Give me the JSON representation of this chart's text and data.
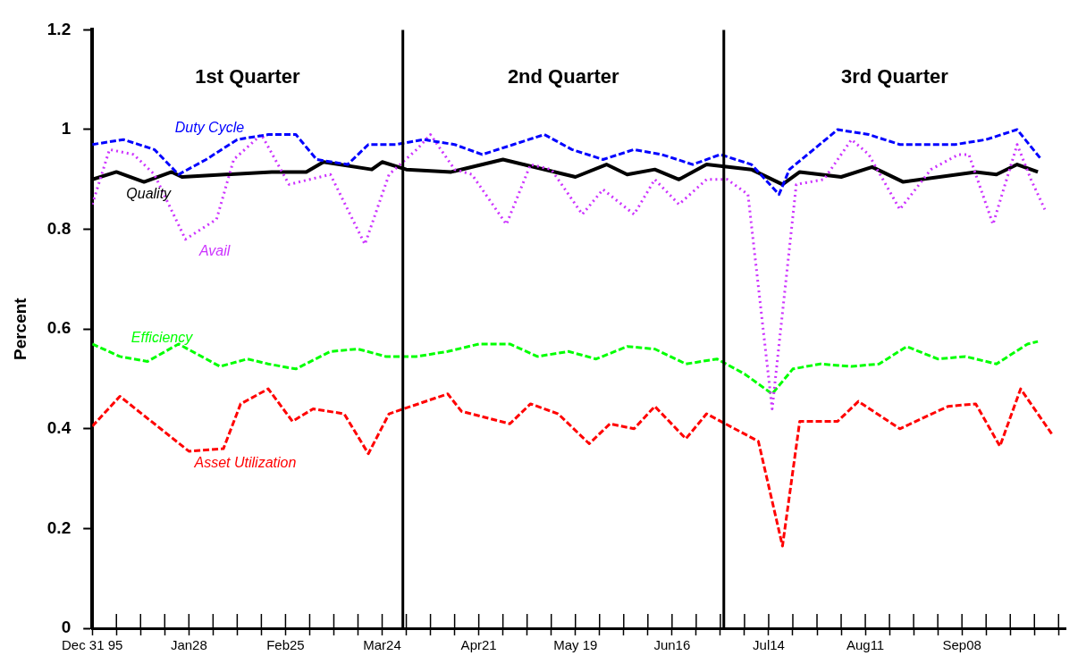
{
  "chart_data": {
    "type": "line",
    "ylabel": "Percent",
    "marker": "none",
    "xlim": [
      "1995-12-31",
      "1996-10-08"
    ],
    "ylim": [
      0,
      1.2
    ],
    "yticks": [
      0,
      0.2,
      0.4,
      0.6,
      0.8,
      1,
      1.2
    ],
    "xticks": [
      {
        "value": "1995-12-31",
        "label": "Dec 31 95"
      },
      {
        "value": "1996-01-07",
        "label": null
      },
      {
        "value": "1996-01-14",
        "label": null
      },
      {
        "value": "1996-01-21",
        "label": null
      },
      {
        "value": "1996-01-28",
        "label": "Jan28"
      },
      {
        "value": "1996-02-04",
        "label": null
      },
      {
        "value": "1996-02-11",
        "label": null
      },
      {
        "value": "1996-02-18",
        "label": null
      },
      {
        "value": "1996-02-25",
        "label": "Feb25"
      },
      {
        "value": "1996-03-03",
        "label": null
      },
      {
        "value": "1996-03-10",
        "label": null
      },
      {
        "value": "1996-03-17",
        "label": null
      },
      {
        "value": "1996-03-24",
        "label": "Mar24"
      },
      {
        "value": "1996-03-31",
        "label": null
      },
      {
        "value": "1996-04-07",
        "label": null
      },
      {
        "value": "1996-04-14",
        "label": null
      },
      {
        "value": "1996-04-21",
        "label": "Apr21"
      },
      {
        "value": "1996-04-28",
        "label": null
      },
      {
        "value": "1996-05-05",
        "label": null
      },
      {
        "value": "1996-05-12",
        "label": null
      },
      {
        "value": "1996-05-19",
        "label": "May 19"
      },
      {
        "value": "1996-05-26",
        "label": null
      },
      {
        "value": "1996-06-02",
        "label": null
      },
      {
        "value": "1996-06-09",
        "label": null
      },
      {
        "value": "1996-06-16",
        "label": "Jun16"
      },
      {
        "value": "1996-06-23",
        "label": null
      },
      {
        "value": "1996-06-30",
        "label": null
      },
      {
        "value": "1996-07-07",
        "label": null
      },
      {
        "value": "1996-07-14",
        "label": "Jul14"
      },
      {
        "value": "1996-07-21",
        "label": null
      },
      {
        "value": "1996-07-28",
        "label": null
      },
      {
        "value": "1996-08-04",
        "label": null
      },
      {
        "value": "1996-08-11",
        "label": "Aug11"
      },
      {
        "value": "1996-08-18",
        "label": null
      },
      {
        "value": "1996-08-25",
        "label": null
      },
      {
        "value": "1996-09-01",
        "label": null
      },
      {
        "value": "1996-09-08",
        "label": "Sep08"
      },
      {
        "value": "1996-09-15",
        "label": null
      },
      {
        "value": "1996-09-22",
        "label": null
      },
      {
        "value": "1996-09-29",
        "label": null
      },
      {
        "value": "1996-10-06",
        "label": null
      }
    ],
    "ref_lines": [
      {
        "axis": "x",
        "value": "1996-03-30",
        "color": "#000000"
      },
      {
        "axis": "x",
        "value": "1996-07-01",
        "color": "#000000"
      }
    ],
    "annotations": [
      "1st Quarter",
      "2nd Quarter",
      "3rd Quarter"
    ],
    "series": [
      {
        "name": "Duty Cycle",
        "color": "#0000ff",
        "line_style": "dashed",
        "x": [
          "1995-12-31",
          "1996-01-09",
          "1996-01-18",
          "1996-01-25",
          "1996-02-02",
          "1996-02-11",
          "1996-02-20",
          "1996-02-28",
          "1996-03-05",
          "1996-03-14",
          "1996-03-20",
          "1996-03-28",
          "1996-04-05",
          "1996-04-14",
          "1996-04-22",
          "1996-05-01",
          "1996-05-10",
          "1996-05-18",
          "1996-05-27",
          "1996-06-05",
          "1996-06-13",
          "1996-06-22",
          "1996-06-30",
          "1996-07-09",
          "1996-07-17",
          "1996-07-20",
          "1996-07-27",
          "1996-08-03",
          "1996-08-12",
          "1996-08-21",
          "1996-08-29",
          "1996-09-06",
          "1996-09-15",
          "1996-09-24",
          "1996-10-01"
        ],
        "values": [
          0.97,
          0.98,
          0.96,
          0.91,
          0.94,
          0.98,
          0.99,
          0.99,
          0.94,
          0.93,
          0.97,
          0.97,
          0.98,
          0.97,
          0.95,
          0.97,
          0.99,
          0.96,
          0.94,
          0.96,
          0.95,
          0.93,
          0.95,
          0.93,
          0.87,
          0.92,
          0.96,
          1.0,
          0.99,
          0.97,
          0.97,
          0.97,
          0.98,
          1.0,
          0.94
        ]
      },
      {
        "name": "Avail",
        "color": "#cc33ff",
        "line_style": "dotted",
        "x": [
          "1995-12-31",
          "1996-01-05",
          "1996-01-12",
          "1996-01-18",
          "1996-01-27",
          "1996-02-05",
          "1996-02-10",
          "1996-02-18",
          "1996-02-26",
          "1996-03-09",
          "1996-03-19",
          "1996-03-26",
          "1996-04-03",
          "1996-04-07",
          "1996-04-14",
          "1996-04-19",
          "1996-04-29",
          "1996-05-06",
          "1996-05-12",
          "1996-05-21",
          "1996-05-27",
          "1996-06-05",
          "1996-06-11",
          "1996-06-18",
          "1996-06-26",
          "1996-07-02",
          "1996-07-08",
          "1996-07-15",
          "1996-07-22",
          "1996-07-30",
          "1996-08-07",
          "1996-08-12",
          "1996-08-21",
          "1996-08-30",
          "1996-09-07",
          "1996-09-10",
          "1996-09-17",
          "1996-09-24",
          "1996-09-28",
          "1996-10-02"
        ],
        "values": [
          0.85,
          0.96,
          0.95,
          0.91,
          0.78,
          0.82,
          0.94,
          0.99,
          0.89,
          0.91,
          0.77,
          0.91,
          0.96,
          0.99,
          0.92,
          0.91,
          0.81,
          0.93,
          0.92,
          0.83,
          0.88,
          0.83,
          0.9,
          0.85,
          0.9,
          0.9,
          0.87,
          0.44,
          0.89,
          0.9,
          0.98,
          0.95,
          0.84,
          0.92,
          0.95,
          0.95,
          0.81,
          0.97,
          0.9,
          0.84
        ]
      },
      {
        "name": "Quality",
        "color": "#000000",
        "line_style": "solid",
        "x": [
          "1995-12-31",
          "1996-01-07",
          "1996-01-15",
          "1996-01-23",
          "1996-01-26",
          "1996-02-21",
          "1996-03-02",
          "1996-03-07",
          "1996-03-21",
          "1996-03-24",
          "1996-03-31",
          "1996-04-13",
          "1996-04-28",
          "1996-05-19",
          "1996-05-28",
          "1996-06-03",
          "1996-06-11",
          "1996-06-18",
          "1996-06-26",
          "1996-07-09",
          "1996-07-18",
          "1996-07-23",
          "1996-08-04",
          "1996-08-13",
          "1996-08-22",
          "1996-09-12",
          "1996-09-18",
          "1996-09-24",
          "1996-09-30"
        ],
        "values": [
          0.9,
          0.915,
          0.895,
          0.915,
          0.905,
          0.915,
          0.915,
          0.935,
          0.92,
          0.935,
          0.92,
          0.915,
          0.94,
          0.905,
          0.93,
          0.91,
          0.92,
          0.9,
          0.93,
          0.92,
          0.89,
          0.915,
          0.905,
          0.925,
          0.895,
          0.915,
          0.91,
          0.93,
          0.915
        ]
      },
      {
        "name": "Efficiency",
        "color": "#00ff00",
        "line_style": "dashed",
        "x": [
          "1995-12-31",
          "1996-01-08",
          "1996-01-16",
          "1996-01-25",
          "1996-02-06",
          "1996-02-14",
          "1996-02-20",
          "1996-02-28",
          "1996-03-09",
          "1996-03-17",
          "1996-03-25",
          "1996-04-03",
          "1996-04-12",
          "1996-04-21",
          "1996-04-30",
          "1996-05-08",
          "1996-05-17",
          "1996-05-25",
          "1996-06-03",
          "1996-06-11",
          "1996-06-20",
          "1996-06-29",
          "1996-07-07",
          "1996-07-15",
          "1996-07-21",
          "1996-07-29",
          "1996-08-07",
          "1996-08-15",
          "1996-08-23",
          "1996-09-01",
          "1996-09-09",
          "1996-09-18",
          "1996-09-27",
          "1996-09-30"
        ],
        "values": [
          0.57,
          0.545,
          0.535,
          0.57,
          0.525,
          0.54,
          0.53,
          0.52,
          0.555,
          0.56,
          0.545,
          0.545,
          0.555,
          0.57,
          0.57,
          0.545,
          0.555,
          0.54,
          0.565,
          0.56,
          0.53,
          0.54,
          0.51,
          0.47,
          0.52,
          0.53,
          0.525,
          0.53,
          0.565,
          0.54,
          0.545,
          0.53,
          0.57,
          0.575
        ]
      },
      {
        "name": "Asset Utilization",
        "color": "#ff0000",
        "line_style": "dashed",
        "x": [
          "1995-12-31",
          "1996-01-08",
          "1996-01-28",
          "1996-02-07",
          "1996-02-12",
          "1996-02-20",
          "1996-02-27",
          "1996-03-04",
          "1996-03-13",
          "1996-03-20",
          "1996-03-26",
          "1996-04-12",
          "1996-04-16",
          "1996-04-30",
          "1996-05-06",
          "1996-05-14",
          "1996-05-23",
          "1996-05-29",
          "1996-06-05",
          "1996-06-11",
          "1996-06-20",
          "1996-06-26",
          "1996-07-11",
          "1996-07-18",
          "1996-07-23",
          "1996-08-03",
          "1996-08-09",
          "1996-08-21",
          "1996-09-04",
          "1996-09-12",
          "1996-09-19",
          "1996-09-25",
          "1996-10-04"
        ],
        "values": [
          0.405,
          0.465,
          0.355,
          0.36,
          0.45,
          0.48,
          0.415,
          0.44,
          0.43,
          0.35,
          0.43,
          0.47,
          0.435,
          0.41,
          0.45,
          0.43,
          0.37,
          0.41,
          0.4,
          0.445,
          0.38,
          0.43,
          0.375,
          0.165,
          0.415,
          0.415,
          0.455,
          0.4,
          0.445,
          0.45,
          0.365,
          0.48,
          0.39
        ]
      }
    ]
  }
}
